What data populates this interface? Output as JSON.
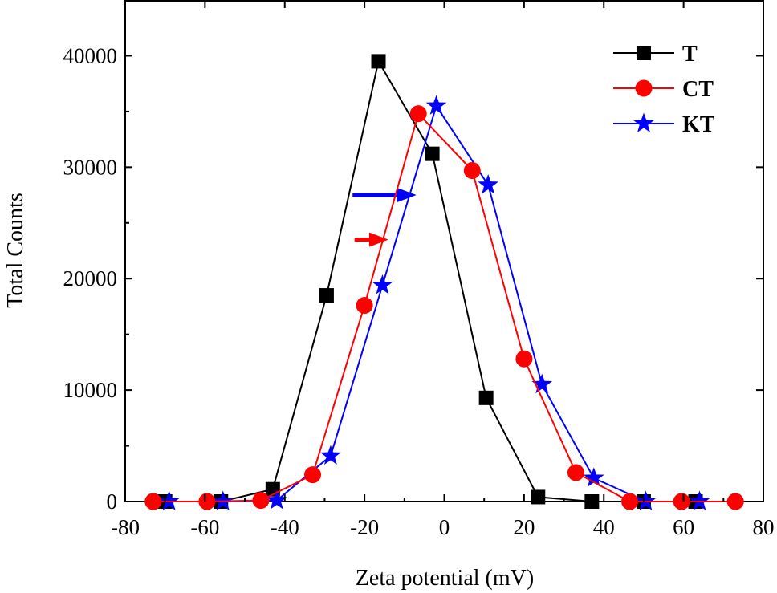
{
  "chart_data": {
    "type": "line",
    "xlabel": "Zeta potential (mV)",
    "ylabel": "Total Counts",
    "xlim": [
      -80,
      80
    ],
    "ylim": [
      0,
      45000
    ],
    "xticks": [
      -80,
      -60,
      -40,
      -20,
      0,
      20,
      40,
      60,
      80
    ],
    "yticks": [
      0,
      10000,
      20000,
      30000,
      40000
    ],
    "xtick_labels": [
      "-80",
      "-60",
      "-40",
      "-20",
      "0",
      "20",
      "40",
      "60",
      "80"
    ],
    "ytick_labels": [
      "0",
      "10000",
      "20000",
      "30000",
      "40000"
    ],
    "legend_position": "top-right",
    "series": [
      {
        "name": "T",
        "color": "#000000",
        "marker": "square",
        "points": [
          [
            -70,
            0
          ],
          [
            -56,
            0
          ],
          [
            -43,
            1100
          ],
          [
            -29.5,
            18500
          ],
          [
            -16.5,
            39500
          ],
          [
            -3,
            31200
          ],
          [
            10.5,
            9300
          ],
          [
            23.5,
            400
          ],
          [
            37,
            0
          ],
          [
            50,
            0
          ],
          [
            63,
            0
          ]
        ]
      },
      {
        "name": "CT",
        "color": "#ff0000",
        "marker": "circle",
        "points": [
          [
            -73,
            0
          ],
          [
            -59.5,
            0
          ],
          [
            -46,
            100
          ],
          [
            -33,
            2400
          ],
          [
            -20,
            17600
          ],
          [
            -6.5,
            34800
          ],
          [
            7,
            29700
          ],
          [
            20,
            12800
          ],
          [
            33,
            2600
          ],
          [
            46.5,
            0
          ],
          [
            59.5,
            0
          ],
          [
            73,
            0
          ]
        ]
      },
      {
        "name": "KT",
        "color": "#0000ff",
        "marker": "star",
        "points": [
          [
            -69,
            0
          ],
          [
            -55.5,
            0
          ],
          [
            -42,
            100
          ],
          [
            -28.5,
            4100
          ],
          [
            -15.5,
            19400
          ],
          [
            -2,
            35500
          ],
          [
            11,
            28400
          ],
          [
            24.5,
            10500
          ],
          [
            37.5,
            2100
          ],
          [
            50.5,
            0
          ],
          [
            64,
            0
          ]
        ]
      }
    ],
    "annotations": [
      {
        "type": "arrow",
        "color": "#ff0000",
        "from": [
          -22.5,
          23500
        ],
        "to": [
          -14,
          23500
        ]
      },
      {
        "type": "arrow",
        "color": "#0000ff",
        "from": [
          -23,
          27500
        ],
        "to": [
          -7,
          27500
        ]
      }
    ]
  }
}
